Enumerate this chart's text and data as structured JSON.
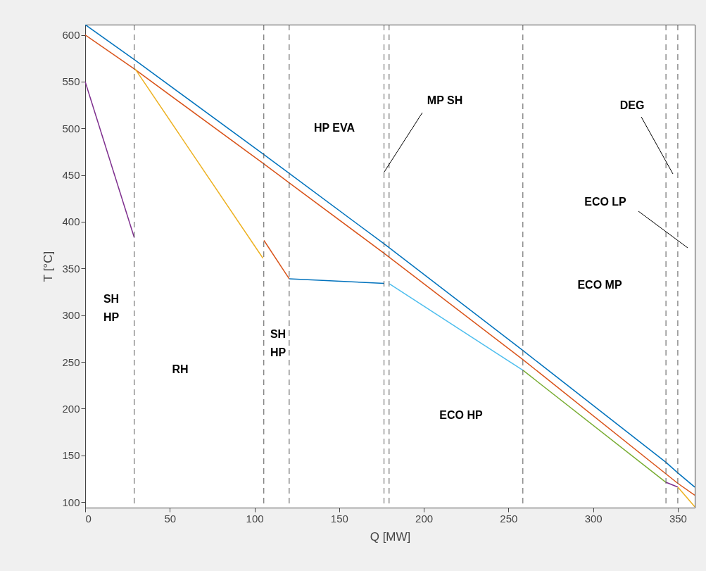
{
  "chart_data": {
    "type": "line",
    "xlabel": "Q [MW]",
    "ylabel": "T [°C]",
    "xlim": [
      0,
      360
    ],
    "ylim": [
      94,
      611
    ],
    "xticks": [
      0,
      50,
      100,
      150,
      200,
      250,
      300,
      350
    ],
    "yticks": [
      100,
      150,
      200,
      250,
      300,
      350,
      400,
      450,
      500,
      550,
      600
    ],
    "grid": false,
    "marker": "none",
    "line_style": "solid",
    "series": [
      {
        "color": "#0072bd",
        "x": [
          0,
          29,
          105.6,
          120.6,
          176.6,
          258.7,
          343,
          350,
          360
        ],
        "values": [
          611,
          573.6,
          471.8,
          451.7,
          376.3,
          261.9,
          142.5,
          131.2,
          116
        ]
      },
      {
        "color": "#d95319",
        "x": [
          0,
          29,
          105.6,
          120.6,
          176.6,
          258.7,
          350,
          360
        ],
        "values": [
          600,
          563.6,
          461.8,
          441.6,
          366.2,
          252.2,
          120,
          107.3
        ]
      },
      {
        "color": "#7e2f8e",
        "x": [
          0,
          29
        ],
        "values": [
          550,
          383
        ]
      },
      {
        "color": "#edb120",
        "x": [
          29.5,
          105
        ],
        "values": [
          563.6,
          361
        ]
      },
      {
        "color": "#d95319",
        "x": [
          105.6,
          120.6
        ],
        "values": [
          380,
          338.6
        ]
      },
      {
        "color": "#0072bd",
        "x": [
          120.6,
          176.6
        ],
        "values": [
          339,
          334
        ]
      },
      {
        "color": "#4dbeee",
        "x": [
          179.7,
          258.7
        ],
        "values": [
          333.5,
          240.8
        ]
      },
      {
        "color": "#77ac30",
        "x": [
          258.7,
          343
        ],
        "values": [
          240.8,
          121.1
        ]
      },
      {
        "color": "#7e2f8e",
        "x": [
          343,
          350
        ],
        "values": [
          121.1,
          116
        ]
      },
      {
        "color": "#edb120",
        "x": [
          350,
          360
        ],
        "values": [
          116,
          95
        ]
      }
    ],
    "ref_lines": [
      {
        "axis": "x",
        "value": 29,
        "color": "#555555",
        "line_style": "dashed"
      },
      {
        "axis": "x",
        "value": 105.5,
        "color": "#555555",
        "line_style": "dashed"
      },
      {
        "axis": "x",
        "value": 120.5,
        "color": "#555555",
        "line_style": "dashed"
      },
      {
        "axis": "x",
        "value": 176.5,
        "color": "#555555",
        "line_style": "dashed"
      },
      {
        "axis": "x",
        "value": 179.5,
        "color": "#555555",
        "line_style": "dashed"
      },
      {
        "axis": "x",
        "value": 258.5,
        "color": "#555555",
        "line_style": "dashed"
      },
      {
        "axis": "x",
        "value": 343,
        "color": "#555555",
        "line_style": "dashed"
      },
      {
        "axis": "x",
        "value": 350,
        "color": "#555555",
        "line_style": "dashed"
      }
    ],
    "annotations": [
      "SH\nHP",
      "RH",
      "SH\nHP",
      "HP EVA",
      {
        "text": "MP SH",
        "x": 176.5,
        "y": 453
      },
      "DEG",
      "ECO LP",
      "ECO MP",
      "ECO HP"
    ]
  }
}
